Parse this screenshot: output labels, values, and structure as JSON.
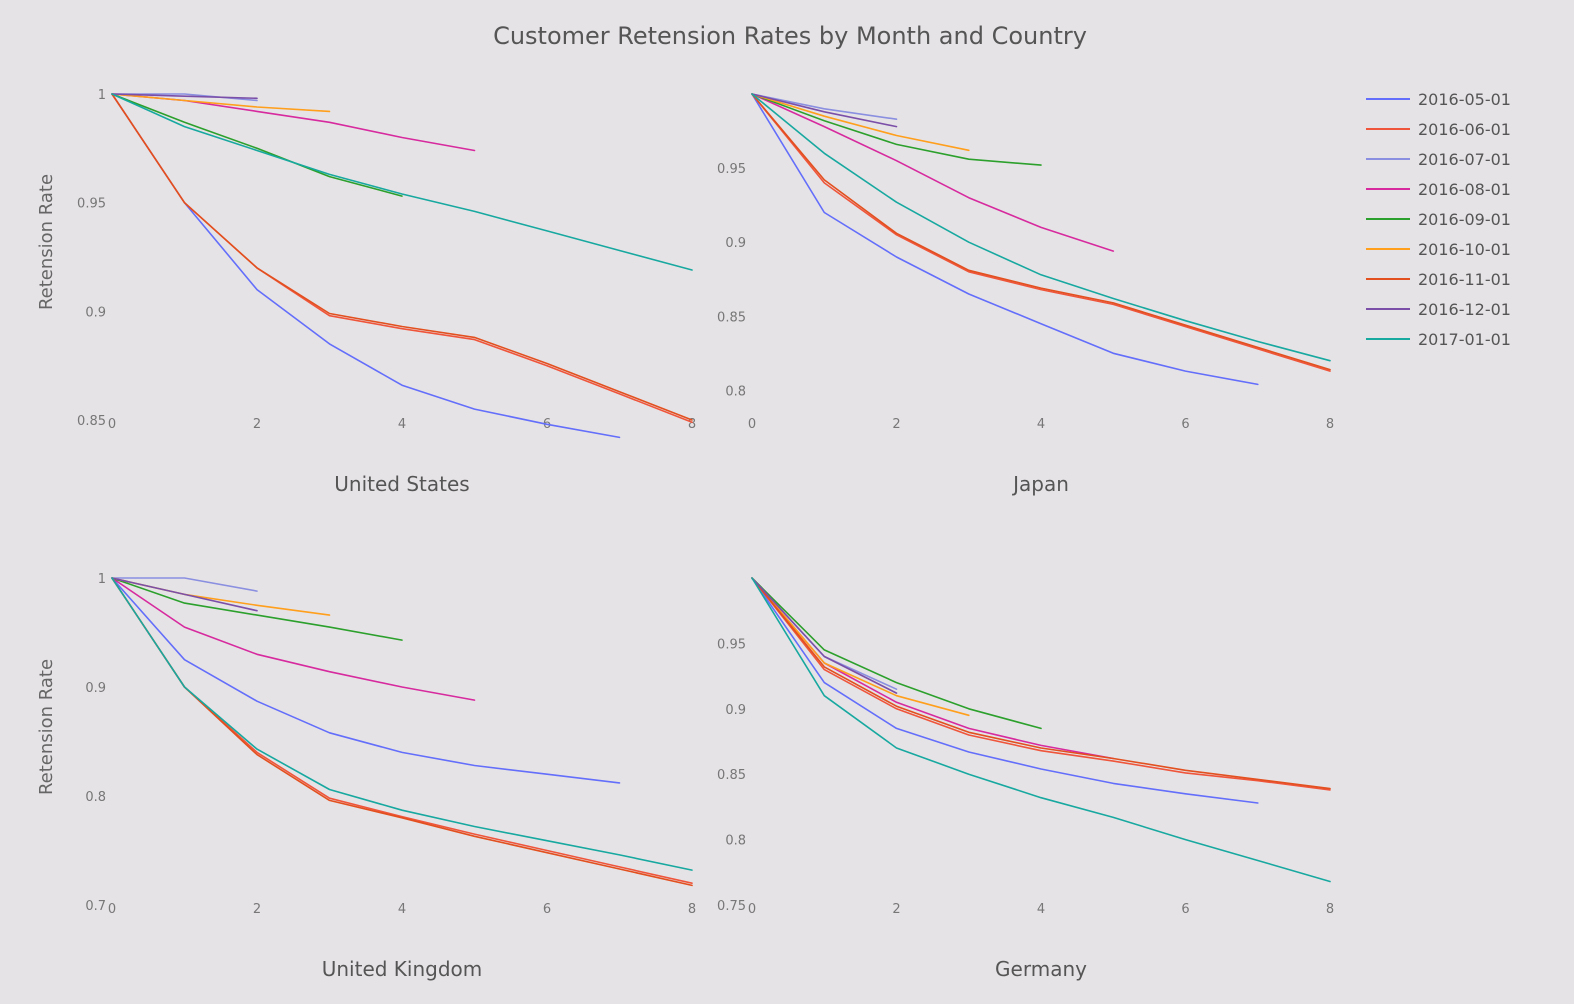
{
  "chart_data": {
    "type": "line",
    "title": "Customer Retension Rates by Month and Country",
    "ylabel": "Retension Rate",
    "legend": "top-right",
    "grid": false,
    "series_meta": [
      {
        "name": "2016-05-01",
        "color": "#636efa"
      },
      {
        "name": "2016-06-01",
        "color": "#ef553b"
      },
      {
        "name": "2016-07-01",
        "color": "#8a8fe0"
      },
      {
        "name": "2016-08-01",
        "color": "#d62a9e"
      },
      {
        "name": "2016-09-01",
        "color": "#2ca02c"
      },
      {
        "name": "2016-10-01",
        "color": "#ff9f1c"
      },
      {
        "name": "2016-11-01",
        "color": "#e2501f"
      },
      {
        "name": "2016-12-01",
        "color": "#7b4fa8"
      },
      {
        "name": "2017-01-01",
        "color": "#17a8a0"
      }
    ],
    "panels": [
      {
        "subtitle": "United States",
        "xlim": [
          0,
          8
        ],
        "ylim": [
          0.85,
          1.0
        ],
        "xticks": [
          "0",
          "2",
          "4",
          "6",
          "8"
        ],
        "yticks": [
          {
            "v": 1.0,
            "label": "1"
          },
          {
            "v": 0.95,
            "label": "0.95"
          },
          {
            "v": 0.9,
            "label": "0.9"
          },
          {
            "v": 0.85,
            "label": "0.85"
          }
        ],
        "series": [
          {
            "name": "2016-05-01",
            "x": [
              0,
              1,
              2,
              3,
              4,
              5,
              6,
              7
            ],
            "y": [
              1.0,
              0.95,
              0.91,
              0.885,
              0.866,
              0.855,
              0.848,
              0.842
            ]
          },
          {
            "name": "2016-06-01",
            "x": [
              0,
              1,
              2,
              3,
              4,
              5,
              6,
              7,
              8
            ],
            "y": [
              1.0,
              0.95,
              0.92,
              0.898,
              0.892,
              0.887,
              0.875,
              0.862,
              0.849
            ]
          },
          {
            "name": "2016-07-01",
            "x": [
              0,
              1,
              2
            ],
            "y": [
              1.0,
              1.0,
              0.997
            ]
          },
          {
            "name": "2016-08-01",
            "x": [
              0,
              1,
              2,
              3,
              4,
              5
            ],
            "y": [
              1.0,
              0.997,
              0.992,
              0.987,
              0.98,
              0.974
            ]
          },
          {
            "name": "2016-09-01",
            "x": [
              0,
              1,
              2,
              3,
              4
            ],
            "y": [
              1.0,
              0.987,
              0.975,
              0.962,
              0.953
            ]
          },
          {
            "name": "2016-10-01",
            "x": [
              0,
              1,
              2,
              3
            ],
            "y": [
              1.0,
              0.997,
              0.994,
              0.992
            ]
          },
          {
            "name": "2016-11-01",
            "x": [
              0,
              1,
              2,
              3,
              4,
              5,
              6,
              7,
              8
            ],
            "y": [
              1.0,
              0.95,
              0.92,
              0.899,
              0.893,
              0.888,
              0.876,
              0.863,
              0.85
            ]
          },
          {
            "name": "2016-12-01",
            "x": [
              0,
              1,
              2
            ],
            "y": [
              1.0,
              0.999,
              0.998
            ]
          },
          {
            "name": "2017-01-01",
            "x": [
              0,
              1,
              2,
              3,
              4,
              5,
              6,
              7,
              8
            ],
            "y": [
              1.0,
              0.985,
              0.974,
              0.963,
              0.954,
              0.946,
              0.937,
              0.928,
              0.919
            ]
          }
        ]
      },
      {
        "subtitle": "Japan",
        "xlim": [
          0,
          8
        ],
        "ylim": [
          0.78,
          1.0
        ],
        "xticks": [
          "0",
          "2",
          "4",
          "6",
          "8"
        ],
        "yticks": [
          {
            "v": 0.95,
            "label": "0.95"
          },
          {
            "v": 0.9,
            "label": "0.9"
          },
          {
            "v": 0.85,
            "label": "0.85"
          },
          {
            "v": 0.8,
            "label": "0.8"
          }
        ],
        "series": [
          {
            "name": "2016-05-01",
            "x": [
              0,
              1,
              2,
              3,
              4,
              5,
              6,
              7
            ],
            "y": [
              1.0,
              0.92,
              0.89,
              0.865,
              0.845,
              0.825,
              0.813,
              0.804
            ]
          },
          {
            "name": "2016-06-01",
            "x": [
              0,
              1,
              2,
              3,
              4,
              5,
              6,
              7,
              8
            ],
            "y": [
              1.0,
              0.94,
              0.905,
              0.88,
              0.868,
              0.858,
              0.843,
              0.828,
              0.813
            ]
          },
          {
            "name": "2016-07-01",
            "x": [
              0,
              1,
              2
            ],
            "y": [
              1.0,
              0.99,
              0.983
            ]
          },
          {
            "name": "2016-08-01",
            "x": [
              0,
              1,
              2,
              3,
              4,
              5
            ],
            "y": [
              1.0,
              0.978,
              0.955,
              0.93,
              0.91,
              0.894
            ]
          },
          {
            "name": "2016-09-01",
            "x": [
              0,
              1,
              2,
              3,
              4
            ],
            "y": [
              1.0,
              0.982,
              0.966,
              0.956,
              0.952
            ]
          },
          {
            "name": "2016-10-01",
            "x": [
              0,
              1,
              2,
              3
            ],
            "y": [
              1.0,
              0.985,
              0.972,
              0.962
            ]
          },
          {
            "name": "2016-11-01",
            "x": [
              0,
              1,
              2,
              3,
              4,
              5,
              6,
              7,
              8
            ],
            "y": [
              1.0,
              0.942,
              0.906,
              0.881,
              0.869,
              0.859,
              0.844,
              0.829,
              0.814
            ]
          },
          {
            "name": "2016-12-01",
            "x": [
              0,
              1,
              2
            ],
            "y": [
              1.0,
              0.988,
              0.978
            ]
          },
          {
            "name": "2017-01-01",
            "x": [
              0,
              1,
              2,
              3,
              4,
              5,
              6,
              7,
              8
            ],
            "y": [
              1.0,
              0.96,
              0.927,
              0.9,
              0.878,
              0.862,
              0.847,
              0.833,
              0.82
            ]
          }
        ]
      },
      {
        "subtitle": "United Kingdom",
        "xlim": [
          0,
          8
        ],
        "ylim": [
          0.7,
          1.0
        ],
        "xticks": [
          "0",
          "2",
          "4",
          "6",
          "8"
        ],
        "yticks": [
          {
            "v": 1.0,
            "label": "1"
          },
          {
            "v": 0.9,
            "label": "0.9"
          },
          {
            "v": 0.8,
            "label": "0.8"
          },
          {
            "v": 0.7,
            "label": "0.7"
          }
        ],
        "series": [
          {
            "name": "2016-05-01",
            "x": [
              0,
              1,
              2,
              3,
              4,
              5,
              6,
              7
            ],
            "y": [
              1.0,
              0.925,
              0.887,
              0.858,
              0.84,
              0.828,
              0.82,
              0.812
            ]
          },
          {
            "name": "2016-06-01",
            "x": [
              0,
              1,
              2,
              3,
              4,
              5,
              6,
              7,
              8
            ],
            "y": [
              1.0,
              0.9,
              0.84,
              0.798,
              0.781,
              0.765,
              0.75,
              0.735,
              0.72
            ]
          },
          {
            "name": "2016-07-01",
            "x": [
              0,
              1,
              2
            ],
            "y": [
              1.0,
              1.0,
              0.988
            ]
          },
          {
            "name": "2016-08-01",
            "x": [
              0,
              1,
              2,
              3,
              4,
              5
            ],
            "y": [
              1.0,
              0.955,
              0.93,
              0.914,
              0.9,
              0.888
            ]
          },
          {
            "name": "2016-09-01",
            "x": [
              0,
              1,
              2,
              3,
              4
            ],
            "y": [
              1.0,
              0.977,
              0.966,
              0.955,
              0.943
            ]
          },
          {
            "name": "2016-10-01",
            "x": [
              0,
              1,
              2,
              3
            ],
            "y": [
              1.0,
              0.985,
              0.975,
              0.966
            ]
          },
          {
            "name": "2016-11-01",
            "x": [
              0,
              1,
              2,
              3,
              4,
              5,
              6,
              7,
              8
            ],
            "y": [
              1.0,
              0.9,
              0.838,
              0.796,
              0.78,
              0.763,
              0.748,
              0.733,
              0.718
            ]
          },
          {
            "name": "2016-12-01",
            "x": [
              0,
              1,
              2
            ],
            "y": [
              1.0,
              0.985,
              0.97
            ]
          },
          {
            "name": "2017-01-01",
            "x": [
              0,
              1,
              2,
              3,
              4,
              5,
              6,
              7,
              8
            ],
            "y": [
              1.0,
              0.9,
              0.843,
              0.806,
              0.787,
              0.772,
              0.759,
              0.746,
              0.732
            ]
          }
        ]
      },
      {
        "subtitle": "Germany",
        "xlim": [
          0,
          8
        ],
        "ylim": [
          0.75,
          1.0
        ],
        "xticks": [
          "0",
          "2",
          "4",
          "6",
          "8"
        ],
        "yticks": [
          {
            "v": 0.95,
            "label": "0.95"
          },
          {
            "v": 0.9,
            "label": "0.9"
          },
          {
            "v": 0.85,
            "label": "0.85"
          },
          {
            "v": 0.8,
            "label": "0.8"
          },
          {
            "v": 0.75,
            "label": "0.75"
          }
        ],
        "series": [
          {
            "name": "2016-05-01",
            "x": [
              0,
              1,
              2,
              3,
              4,
              5,
              6,
              7
            ],
            "y": [
              1.0,
              0.92,
              0.885,
              0.867,
              0.854,
              0.843,
              0.835,
              0.828
            ]
          },
          {
            "name": "2016-06-01",
            "x": [
              0,
              1,
              2,
              3,
              4,
              5,
              6,
              7,
              8
            ],
            "y": [
              1.0,
              0.93,
              0.9,
              0.88,
              0.868,
              0.86,
              0.851,
              0.845,
              0.838
            ]
          },
          {
            "name": "2016-07-01",
            "x": [
              0,
              1,
              2
            ],
            "y": [
              1.0,
              0.94,
              0.915
            ]
          },
          {
            "name": "2016-08-01",
            "x": [
              0,
              1,
              2,
              3,
              4,
              5
            ],
            "y": [
              1.0,
              0.935,
              0.905,
              0.885,
              0.872,
              0.862
            ]
          },
          {
            "name": "2016-09-01",
            "x": [
              0,
              1,
              2,
              3,
              4
            ],
            "y": [
              1.0,
              0.945,
              0.92,
              0.9,
              0.885
            ]
          },
          {
            "name": "2016-10-01",
            "x": [
              0,
              1,
              2,
              3
            ],
            "y": [
              1.0,
              0.935,
              0.91,
              0.895
            ]
          },
          {
            "name": "2016-11-01",
            "x": [
              0,
              1,
              2,
              3,
              4,
              5,
              6,
              7,
              8
            ],
            "y": [
              1.0,
              0.932,
              0.902,
              0.882,
              0.87,
              0.862,
              0.853,
              0.846,
              0.839
            ]
          },
          {
            "name": "2016-12-01",
            "x": [
              0,
              1,
              2
            ],
            "y": [
              1.0,
              0.94,
              0.912
            ]
          },
          {
            "name": "2017-01-01",
            "x": [
              0,
              1,
              2,
              3,
              4,
              5,
              6,
              7,
              8
            ],
            "y": [
              1.0,
              0.91,
              0.87,
              0.85,
              0.832,
              0.817,
              0.8,
              0.784,
              0.768
            ]
          }
        ]
      }
    ]
  }
}
